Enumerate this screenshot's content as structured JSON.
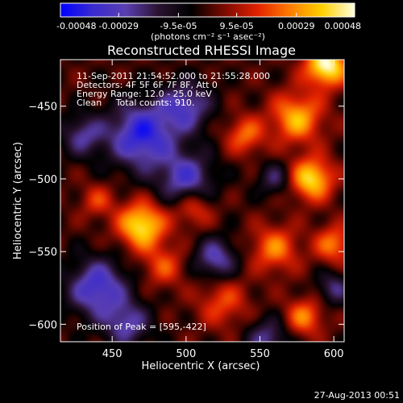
{
  "colors": {
    "background": "#000000",
    "foreground": "#ffffff",
    "colormap": [
      "#0000ff",
      "#3a2bd0",
      "#5a3fb0",
      "#2a1230",
      "#000000",
      "#7a0a00",
      "#e02000",
      "#ff7a00",
      "#ffd000",
      "#ffffe0"
    ]
  },
  "colorbar": {
    "tick_labels": [
      "-0.00048",
      "-0.00029",
      "-9.5e-05",
      "9.5e-05",
      "0.00029",
      "0.00048"
    ],
    "tick_values": [
      -0.00048,
      -0.00029,
      -9.5e-05,
      9.5e-05,
      0.00029,
      0.00048
    ],
    "range": [
      -0.00048,
      0.00048
    ],
    "units_label": "(photons cm⁻² s⁻¹ asec⁻²)"
  },
  "footer": {
    "timestamp": "27-Aug-2013 00:51"
  },
  "chart_data": {
    "type": "heatmap",
    "title": "Reconstructed RHESSI Image",
    "xlabel": "Heliocentric X (arcsec)",
    "ylabel": "Heliocentric Y (arcsec)",
    "xlim": [
      415,
      607
    ],
    "ylim": [
      -612,
      -418
    ],
    "x_ticks": [
      450,
      500,
      550,
      600
    ],
    "x_tick_labels": [
      "450",
      "500",
      "550",
      "600"
    ],
    "y_ticks": [
      -450,
      -500,
      -550,
      -600
    ],
    "y_tick_labels": [
      "−450",
      "−500",
      "−550",
      "−600"
    ],
    "info_lines": [
      "11-Sep-2011 21:54:52.000 to 21:55:28.000",
      "Detectors: 4F 5F 6F 7F 8F, Att 0",
      "Energy Range: 12.0 - 25.0 keV",
      "Clean     Total counts: 910."
    ],
    "peak_label": "Position of Peak = [595,-422]",
    "peak_position": [
      595,
      -422
    ],
    "sources": [
      {
        "x": 595,
        "y": -422,
        "strength": 1.0,
        "width": 10
      },
      {
        "x": 470,
        "y": -532,
        "strength": 0.9,
        "width": 11
      },
      {
        "x": 585,
        "y": -500,
        "strength": 0.85,
        "width": 10
      },
      {
        "x": 575,
        "y": -458,
        "strength": 0.7,
        "width": 12
      },
      {
        "x": 560,
        "y": -548,
        "strength": 0.55,
        "width": 11
      },
      {
        "x": 600,
        "y": -545,
        "strength": 0.55,
        "width": 9
      },
      {
        "x": 540,
        "y": -470,
        "strength": 0.5,
        "width": 9
      },
      {
        "x": 485,
        "y": -560,
        "strength": 0.4,
        "width": 10
      },
      {
        "x": 440,
        "y": -515,
        "strength": 0.35,
        "width": 8
      },
      {
        "x": 505,
        "y": -520,
        "strength": 0.45,
        "width": 9
      },
      {
        "x": 525,
        "y": -585,
        "strength": 0.4,
        "width": 12
      },
      {
        "x": 580,
        "y": -595,
        "strength": 0.55,
        "width": 9
      },
      {
        "x": 470,
        "y": -470,
        "strength": -0.85,
        "width": 16
      },
      {
        "x": 500,
        "y": -450,
        "strength": -0.6,
        "width": 12
      },
      {
        "x": 430,
        "y": -470,
        "strength": -0.5,
        "width": 10
      },
      {
        "x": 500,
        "y": -500,
        "strength": -0.65,
        "width": 13
      },
      {
        "x": 440,
        "y": -575,
        "strength": -0.75,
        "width": 14
      },
      {
        "x": 520,
        "y": -555,
        "strength": -0.6,
        "width": 10
      },
      {
        "x": 460,
        "y": -600,
        "strength": -0.55,
        "width": 11
      },
      {
        "x": 555,
        "y": -610,
        "strength": -0.5,
        "width": 10
      },
      {
        "x": 600,
        "y": -575,
        "strength": -0.45,
        "width": 8
      },
      {
        "x": 560,
        "y": -500,
        "strength": -0.4,
        "width": 8
      }
    ]
  }
}
